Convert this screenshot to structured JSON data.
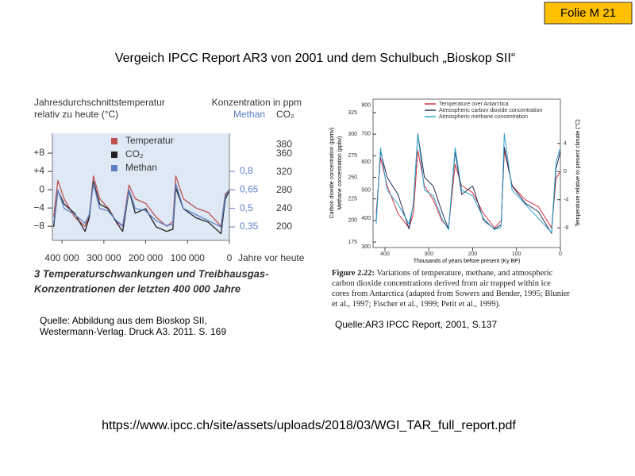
{
  "badge": "Folie M 21",
  "title": "Vergeich IPCC Report AR3 von 2001 und dem Schulbuch „Bioskop SII“",
  "url": "https://www.ipcc.ch/site/assets/uploads/2018/03/WGI_TAR_full_report.pdf",
  "chart_data": [
    {
      "type": "line",
      "axis_title_left": [
        "Jahresdurchschnittstemperatur",
        "relativ zu heute (°C)"
      ],
      "axis_title_right": "Konzentration in ppm",
      "y2label": "Methan",
      "y3label": "CO₂",
      "xlabel": "Jahre vor heute",
      "caption": [
        "3 Temperaturschwankungen und Treibhausgas-",
        "Konzentrationen der letzten 400 000 Jahre"
      ],
      "source": [
        "Quelle: Abbildung aus dem Bioskop SII,",
        "Westermann-Verlag. Druck A3. 2011. S. 169"
      ],
      "x": [
        420000,
        410000,
        395000,
        370000,
        345000,
        335000,
        325000,
        310000,
        290000,
        270000,
        255000,
        240000,
        225000,
        200000,
        175000,
        150000,
        135000,
        128000,
        110000,
        80000,
        50000,
        20000,
        10000,
        0
      ],
      "xlim": [
        423000,
        0
      ],
      "xticks": [
        {
          "value": 400000,
          "label": "400 000"
        },
        {
          "value": 300000,
          "label": "300 000"
        },
        {
          "value": 200000,
          "label": "200 000"
        },
        {
          "value": 100000,
          "label": "100 000"
        },
        0
      ],
      "ylim": [
        -11.1,
        12.35
      ],
      "yticks": [
        {
          "value": 8,
          "label": "+8"
        },
        {
          "value": 4,
          "label": "+4"
        },
        0,
        {
          "value": -4,
          "label": "−4"
        },
        {
          "value": -8,
          "label": "−8"
        }
      ],
      "y2lim": [
        0.241,
        1.108
      ],
      "y2ticks": [
        {
          "value": 0.8,
          "label": "0,8"
        },
        {
          "value": 0.65,
          "label": "0,65"
        },
        {
          "value": 0.5,
          "label": "0,5"
        },
        {
          "value": 0.35,
          "label": "0,35"
        }
      ],
      "y3lim": [
        170.4,
        405.2
      ],
      "y3ticks": [
        380,
        360,
        320,
        280,
        240,
        200
      ],
      "series": [
        {
          "name": "Temperatur",
          "color": "#c0504d",
          "axis": "y",
          "values": [
            -6,
            2,
            -2,
            -6,
            -8,
            -6,
            3,
            -2,
            -4,
            -7,
            -8,
            1,
            -2,
            -3,
            -6,
            -8,
            -7,
            3,
            -2,
            -4,
            -5,
            -8,
            -1,
            0
          ]
        },
        {
          "name": "CO₂",
          "color": "#222222",
          "axis": "y3",
          "values": [
            200,
            280,
            250,
            230,
            190,
            220,
            300,
            250,
            240,
            210,
            190,
            280,
            230,
            240,
            200,
            190,
            195,
            285,
            240,
            220,
            210,
            185,
            260,
            280
          ]
        },
        {
          "name": "Methan",
          "color": "#5b7fc4",
          "axis": "y2",
          "values": [
            0.38,
            0.65,
            0.5,
            0.45,
            0.38,
            0.45,
            0.7,
            0.5,
            0.48,
            0.4,
            0.36,
            0.65,
            0.5,
            0.48,
            0.4,
            0.36,
            0.37,
            0.7,
            0.5,
            0.45,
            0.4,
            0.35,
            0.6,
            0.65
          ]
        }
      ]
    },
    {
      "type": "line",
      "ylabel": "Carbon dioxide concentration (ppmv)",
      "y2label": "Methane concentration (ppbv)",
      "y3label": "Temperature relative to present climate (°C)",
      "xlabel": "Thousands of years before present (Ky BP)",
      "caption_label": "Figure 2.22:",
      "caption": "Variations of temperature, methane, and atmospheric carbon dioxide concentrations derived from air trapped within ice cores from Antarctica (adapted from Sowers and Bender, 1995; Blunier et al., 1997; Fischer et al., 1999; Petit et al., 1999).",
      "source": "Quelle:AR3 IPCC Report, 2001, S.137",
      "x": [
        420,
        410,
        395,
        370,
        345,
        335,
        325,
        310,
        290,
        270,
        255,
        240,
        225,
        200,
        175,
        150,
        135,
        128,
        110,
        80,
        50,
        20,
        10,
        0
      ],
      "xlim": [
        427,
        0
      ],
      "xticks": [
        400,
        300,
        200,
        100,
        0
      ],
      "ylim": [
        168.6,
        340.6
      ],
      "yticks": [
        325,
        300,
        275,
        250,
        225,
        200,
        175
      ],
      "y2lim": [
        297,
        822
      ],
      "y2ticks": [
        800,
        700,
        600,
        500,
        400,
        300
      ],
      "y3lim": [
        -10.8,
        10.3
      ],
      "y3ticks": [
        4,
        0,
        -4,
        -8
      ],
      "series": [
        {
          "name": "Temperature over Antarctica",
          "color": "#d9313d",
          "axis": "y3",
          "values": [
            -6,
            2,
            -2,
            -6,
            -8,
            -6,
            3,
            -2,
            -4,
            -7,
            -8,
            1,
            -2,
            -3,
            -6,
            -8,
            -7,
            3,
            -2,
            -4,
            -5,
            -8,
            -1,
            0
          ]
        },
        {
          "name": "Atmospheric carbon dioxide concentration",
          "color": "#2b2b55",
          "axis": "y",
          "values": [
            200,
            280,
            250,
            230,
            190,
            220,
            300,
            250,
            240,
            210,
            190,
            280,
            230,
            240,
            200,
            190,
            195,
            285,
            240,
            220,
            210,
            185,
            260,
            280
          ]
        },
        {
          "name": "Atmospheric methane concentration",
          "color": "#2ea3cc",
          "axis": "y2",
          "values": [
            380,
            650,
            500,
            450,
            380,
            450,
            700,
            500,
            480,
            400,
            360,
            650,
            500,
            480,
            400,
            360,
            370,
            700,
            500,
            450,
            400,
            350,
            600,
            650
          ]
        }
      ]
    }
  ]
}
